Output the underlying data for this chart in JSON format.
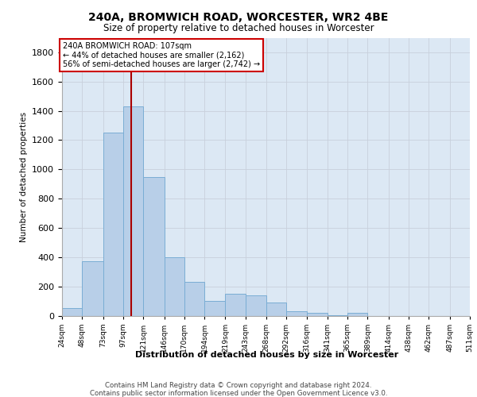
{
  "title1": "240A, BROMWICH ROAD, WORCESTER, WR2 4BE",
  "title2": "Size of property relative to detached houses in Worcester",
  "xlabel": "Distribution of detached houses by size in Worcester",
  "ylabel": "Number of detached properties",
  "annotation_line1": "240A BROMWICH ROAD: 107sqm",
  "annotation_line2": "← 44% of detached houses are smaller (2,162)",
  "annotation_line3": "56% of semi-detached houses are larger (2,742) →",
  "property_size": 107,
  "tick_labels": [
    "24sqm",
    "48sqm",
    "73sqm",
    "97sqm",
    "121sqm",
    "146sqm",
    "170sqm",
    "194sqm",
    "219sqm",
    "243sqm",
    "268sqm",
    "292sqm",
    "316sqm",
    "341sqm",
    "365sqm",
    "389sqm",
    "414sqm",
    "438sqm",
    "462sqm",
    "487sqm",
    "511sqm"
  ],
  "tick_values": [
    24,
    48,
    73,
    97,
    121,
    146,
    170,
    194,
    219,
    243,
    268,
    292,
    316,
    341,
    365,
    389,
    414,
    438,
    462,
    487,
    511
  ],
  "bar_values": [
    50,
    370,
    1250,
    1430,
    950,
    400,
    230,
    100,
    150,
    140,
    90,
    30,
    20,
    5,
    20,
    0,
    0,
    0,
    0,
    0
  ],
  "bar_color": "#b8cfe8",
  "bar_edge_color": "#7aadd4",
  "grid_color": "#c8d0dc",
  "vline_color": "#aa0000",
  "box_edge_color": "#cc0000",
  "footer_text": "Contains HM Land Registry data © Crown copyright and database right 2024.\nContains public sector information licensed under the Open Government Licence v3.0.",
  "ylim": [
    0,
    1900
  ],
  "yticks": [
    0,
    200,
    400,
    600,
    800,
    1000,
    1200,
    1400,
    1600,
    1800
  ],
  "bg_color": "#dce8f4",
  "fig_width": 6.0,
  "fig_height": 5.0,
  "dpi": 100
}
